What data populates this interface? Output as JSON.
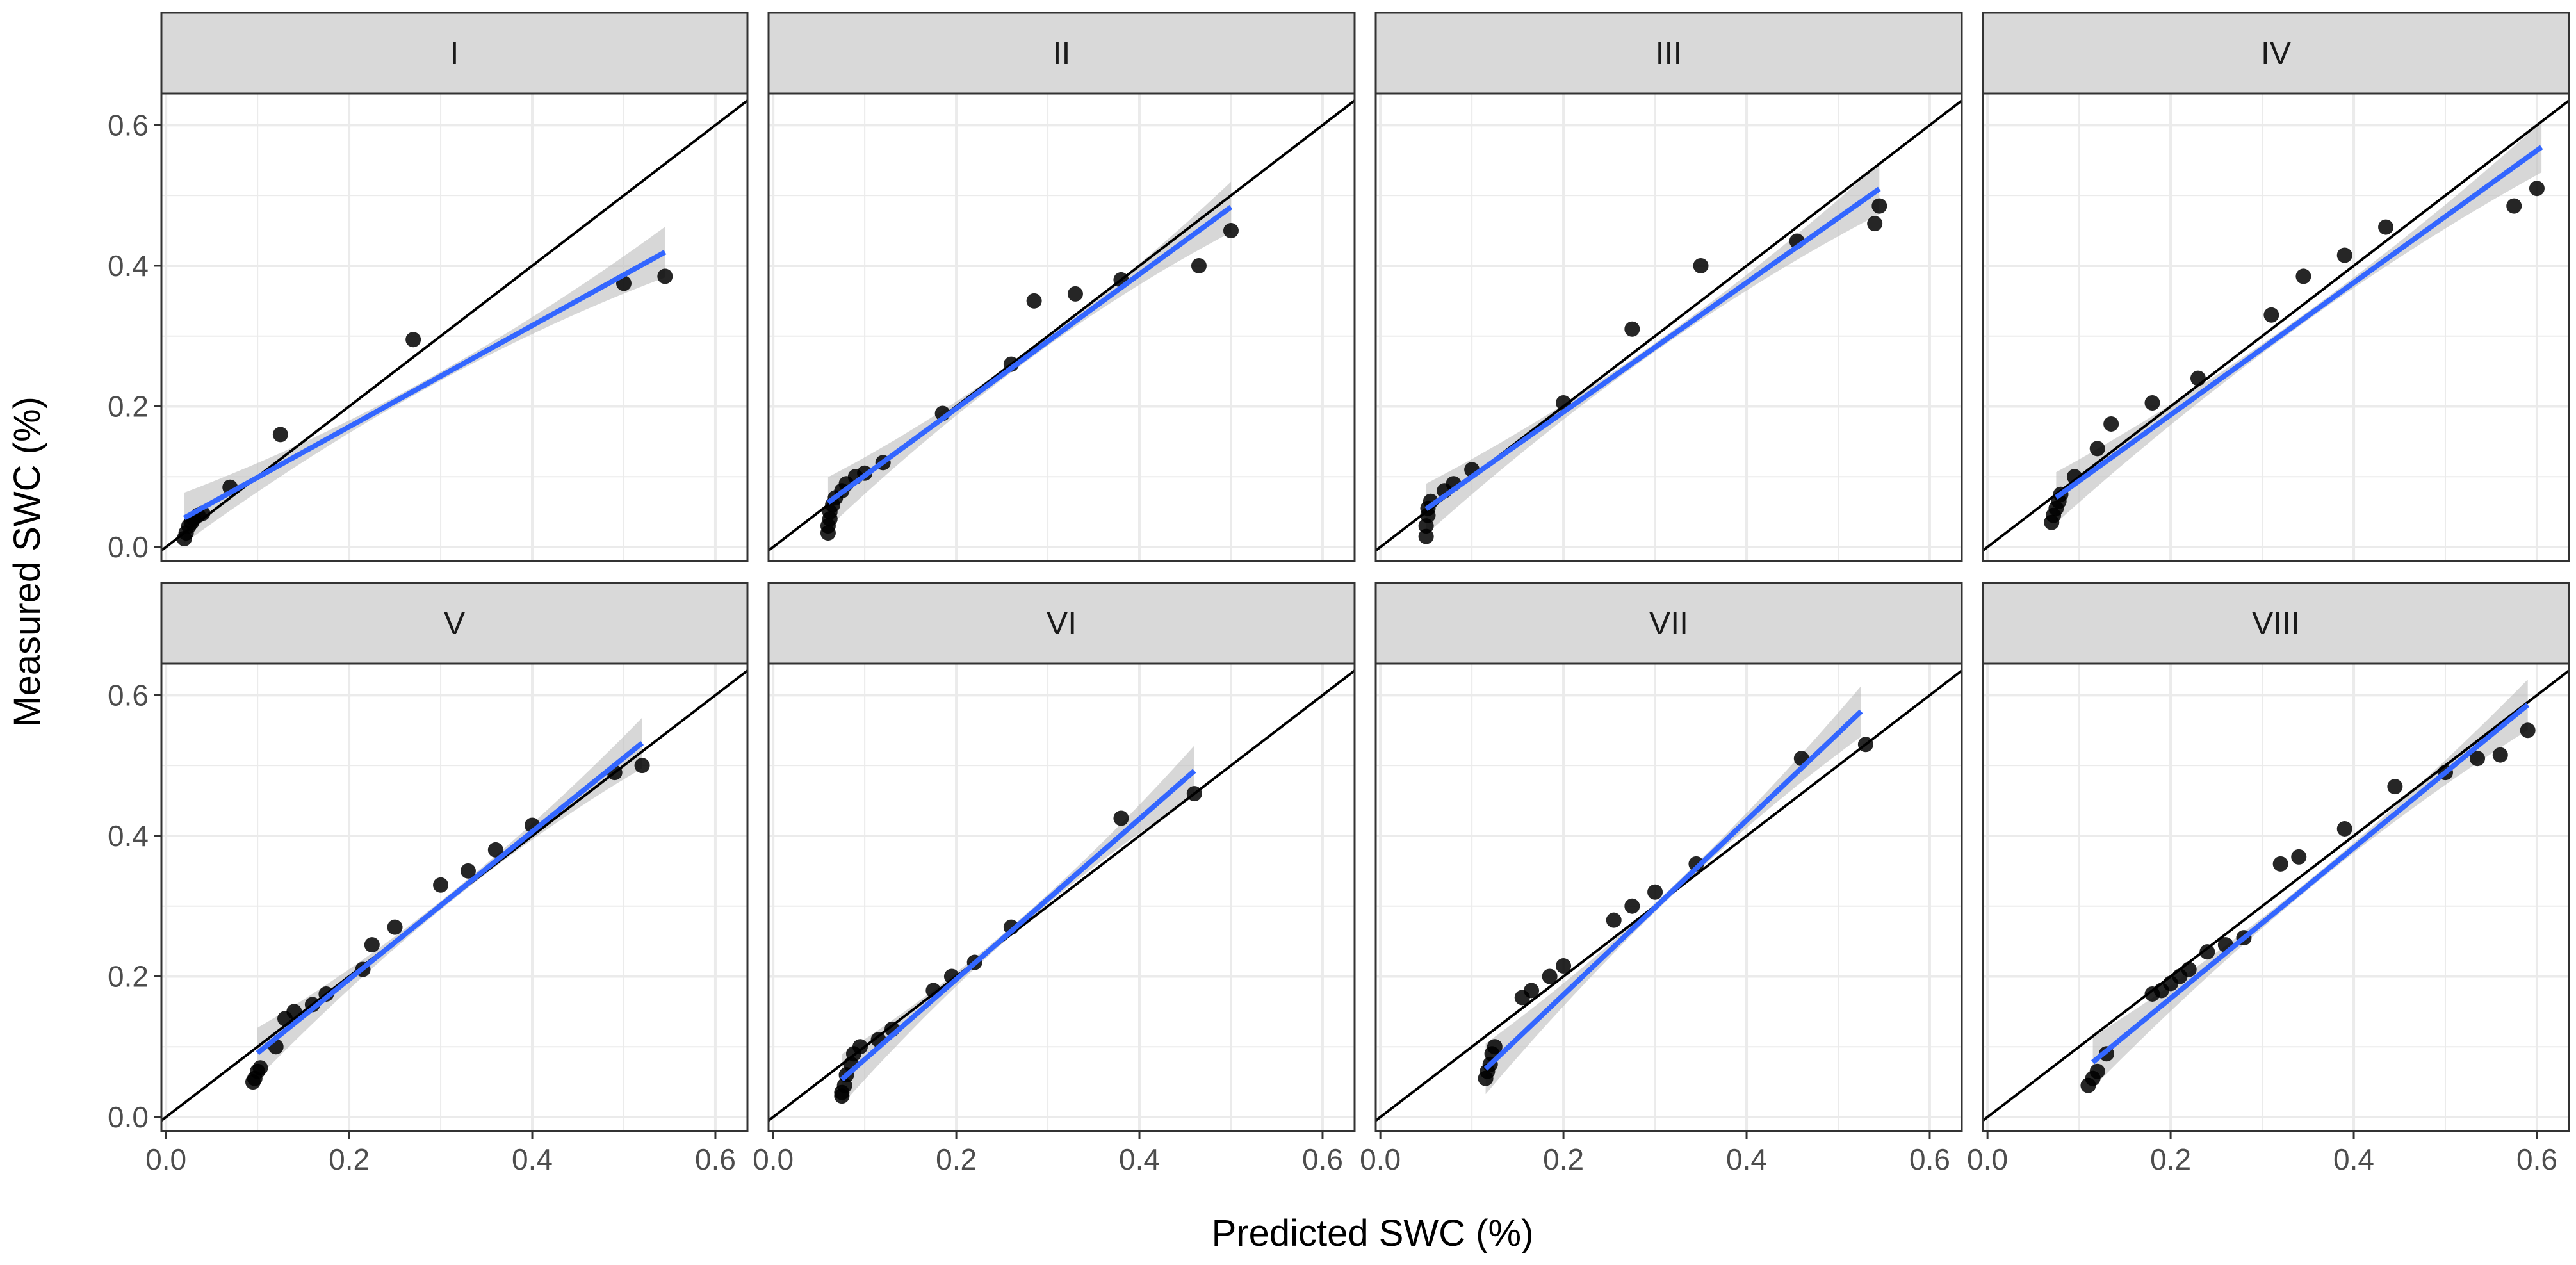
{
  "chart_data": {
    "type": "scatter",
    "layout": "facet-grid",
    "xlabel": "Predicted SWC (%)",
    "ylabel": "Measured SWC (%)",
    "xlim": [
      -0.005,
      0.635
    ],
    "ylim": [
      -0.02,
      0.645
    ],
    "x_ticks": [
      0.0,
      0.2,
      0.4,
      0.6
    ],
    "x_tick_labels": [
      "0.0",
      "0.2",
      "0.4",
      "0.6"
    ],
    "y_ticks": [
      0.0,
      0.2,
      0.4,
      0.6
    ],
    "y_tick_labels": [
      "0.0",
      "0.2",
      "0.4",
      "0.6"
    ],
    "reference_line": "1:1",
    "grid": true,
    "colors": {
      "points": "#000000",
      "fit_line": "#3366ff",
      "confidence_band": "#bdbdbd",
      "reference_line": "#000000",
      "strip_fill": "#d9d9d9",
      "grid": "#ebebeb",
      "panel_border": "#333333"
    },
    "panels": [
      {
        "label": "I",
        "fit": {
          "x_range": [
            0.02,
            0.545
          ],
          "intercept": 0.027,
          "slope": 0.72
        },
        "points": [
          [
            0.02,
            0.012
          ],
          [
            0.022,
            0.02
          ],
          [
            0.025,
            0.03
          ],
          [
            0.028,
            0.035
          ],
          [
            0.03,
            0.04
          ],
          [
            0.035,
            0.045
          ],
          [
            0.04,
            0.048
          ],
          [
            0.07,
            0.085
          ],
          [
            0.125,
            0.16
          ],
          [
            0.27,
            0.295
          ],
          [
            0.5,
            0.375
          ],
          [
            0.545,
            0.385
          ]
        ]
      },
      {
        "label": "II",
        "fit": {
          "x_range": [
            0.06,
            0.5
          ],
          "intercept": 0.006,
          "slope": 0.955
        },
        "points": [
          [
            0.06,
            0.02
          ],
          [
            0.06,
            0.03
          ],
          [
            0.062,
            0.04
          ],
          [
            0.062,
            0.05
          ],
          [
            0.065,
            0.06
          ],
          [
            0.068,
            0.07
          ],
          [
            0.075,
            0.08
          ],
          [
            0.08,
            0.09
          ],
          [
            0.09,
            0.1
          ],
          [
            0.1,
            0.105
          ],
          [
            0.12,
            0.12
          ],
          [
            0.185,
            0.19
          ],
          [
            0.26,
            0.26
          ],
          [
            0.285,
            0.35
          ],
          [
            0.33,
            0.36
          ],
          [
            0.38,
            0.38
          ],
          [
            0.465,
            0.4
          ],
          [
            0.5,
            0.45
          ]
        ]
      },
      {
        "label": "III",
        "fit": {
          "x_range": [
            0.05,
            0.545
          ],
          "intercept": 0.008,
          "slope": 0.92
        },
        "points": [
          [
            0.05,
            0.015
          ],
          [
            0.05,
            0.03
          ],
          [
            0.052,
            0.045
          ],
          [
            0.052,
            0.055
          ],
          [
            0.055,
            0.065
          ],
          [
            0.07,
            0.08
          ],
          [
            0.08,
            0.09
          ],
          [
            0.1,
            0.11
          ],
          [
            0.2,
            0.205
          ],
          [
            0.275,
            0.31
          ],
          [
            0.35,
            0.4
          ],
          [
            0.455,
            0.435
          ],
          [
            0.54,
            0.46
          ],
          [
            0.545,
            0.485
          ]
        ]
      },
      {
        "label": "IV",
        "fit": {
          "x_range": [
            0.075,
            0.605
          ],
          "intercept": 0.0,
          "slope": 0.94
        },
        "points": [
          [
            0.07,
            0.035
          ],
          [
            0.072,
            0.045
          ],
          [
            0.075,
            0.055
          ],
          [
            0.078,
            0.065
          ],
          [
            0.08,
            0.075
          ],
          [
            0.095,
            0.1
          ],
          [
            0.12,
            0.14
          ],
          [
            0.135,
            0.175
          ],
          [
            0.18,
            0.205
          ],
          [
            0.23,
            0.24
          ],
          [
            0.31,
            0.33
          ],
          [
            0.345,
            0.385
          ],
          [
            0.39,
            0.415
          ],
          [
            0.435,
            0.455
          ],
          [
            0.575,
            0.485
          ],
          [
            0.6,
            0.51
          ]
        ]
      },
      {
        "label": "V",
        "fit": {
          "x_range": [
            0.1,
            0.52
          ],
          "intercept": -0.014,
          "slope": 1.05
        },
        "points": [
          [
            0.095,
            0.05
          ],
          [
            0.097,
            0.055
          ],
          [
            0.1,
            0.065
          ],
          [
            0.103,
            0.07
          ],
          [
            0.12,
            0.1
          ],
          [
            0.13,
            0.14
          ],
          [
            0.14,
            0.15
          ],
          [
            0.16,
            0.16
          ],
          [
            0.175,
            0.175
          ],
          [
            0.215,
            0.21
          ],
          [
            0.225,
            0.245
          ],
          [
            0.25,
            0.27
          ],
          [
            0.3,
            0.33
          ],
          [
            0.33,
            0.35
          ],
          [
            0.36,
            0.38
          ],
          [
            0.4,
            0.415
          ],
          [
            0.49,
            0.49
          ],
          [
            0.52,
            0.5
          ]
        ]
      },
      {
        "label": "VI",
        "fit": {
          "x_range": [
            0.075,
            0.46
          ],
          "intercept": -0.032,
          "slope": 1.14
        },
        "points": [
          [
            0.075,
            0.03
          ],
          [
            0.075,
            0.035
          ],
          [
            0.078,
            0.045
          ],
          [
            0.08,
            0.06
          ],
          [
            0.085,
            0.075
          ],
          [
            0.088,
            0.09
          ],
          [
            0.095,
            0.1
          ],
          [
            0.115,
            0.11
          ],
          [
            0.13,
            0.125
          ],
          [
            0.175,
            0.18
          ],
          [
            0.195,
            0.2
          ],
          [
            0.22,
            0.22
          ],
          [
            0.26,
            0.27
          ],
          [
            0.38,
            0.425
          ],
          [
            0.46,
            0.46
          ]
        ]
      },
      {
        "label": "VII",
        "fit": {
          "x_range": [
            0.115,
            0.525
          ],
          "intercept": -0.074,
          "slope": 1.24
        },
        "points": [
          [
            0.115,
            0.055
          ],
          [
            0.117,
            0.065
          ],
          [
            0.12,
            0.075
          ],
          [
            0.122,
            0.09
          ],
          [
            0.125,
            0.1
          ],
          [
            0.155,
            0.17
          ],
          [
            0.165,
            0.18
          ],
          [
            0.185,
            0.2
          ],
          [
            0.2,
            0.215
          ],
          [
            0.255,
            0.28
          ],
          [
            0.275,
            0.3
          ],
          [
            0.3,
            0.32
          ],
          [
            0.345,
            0.36
          ],
          [
            0.46,
            0.51
          ],
          [
            0.53,
            0.53
          ]
        ]
      },
      {
        "label": "VIII",
        "fit": {
          "x_range": [
            0.115,
            0.59
          ],
          "intercept": -0.045,
          "slope": 1.07
        },
        "points": [
          [
            0.11,
            0.045
          ],
          [
            0.115,
            0.055
          ],
          [
            0.12,
            0.065
          ],
          [
            0.13,
            0.09
          ],
          [
            0.18,
            0.175
          ],
          [
            0.19,
            0.18
          ],
          [
            0.2,
            0.19
          ],
          [
            0.21,
            0.2
          ],
          [
            0.22,
            0.21
          ],
          [
            0.24,
            0.235
          ],
          [
            0.26,
            0.245
          ],
          [
            0.28,
            0.255
          ],
          [
            0.32,
            0.36
          ],
          [
            0.34,
            0.37
          ],
          [
            0.39,
            0.41
          ],
          [
            0.445,
            0.47
          ],
          [
            0.5,
            0.49
          ],
          [
            0.535,
            0.51
          ],
          [
            0.56,
            0.515
          ],
          [
            0.59,
            0.55
          ]
        ]
      }
    ]
  }
}
